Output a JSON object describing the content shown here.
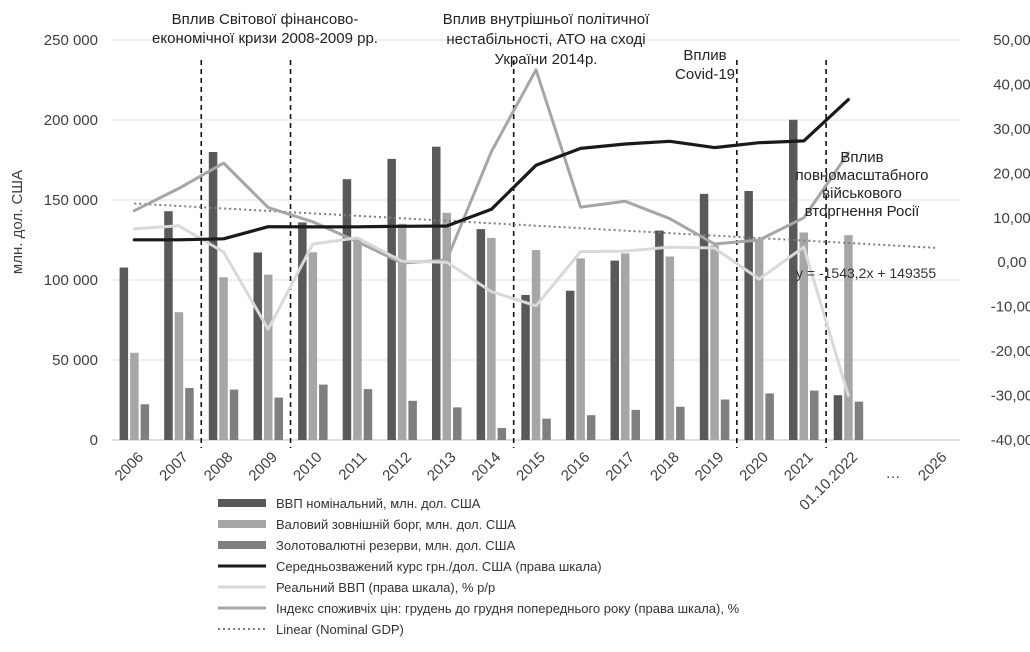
{
  "chart_data": {
    "type": "bar",
    "categories": [
      "2006",
      "2007",
      "2008",
      "2009",
      "2010",
      "2011",
      "2012",
      "2013",
      "2014",
      "2015",
      "2016",
      "2017",
      "2018",
      "2019",
      "2020",
      "2021",
      "01.10.2022",
      "…",
      "2026"
    ],
    "ylabel": "млн. дол. США",
    "ylim": [
      0,
      250000
    ],
    "y2lim": [
      -40,
      50
    ],
    "y_ticks": [
      "0",
      "50 000",
      "100 000",
      "150 000",
      "200 000",
      "250 000"
    ],
    "y2_ticks": [
      "-40,00",
      "-30,00",
      "-20,00",
      "-10,00",
      "0,00",
      "10,00",
      "20,00",
      "30,00",
      "40,00",
      "50,00"
    ],
    "series": [
      {
        "name": "ВВП номінальний, млн. дол. США",
        "type": "bar",
        "axis": "left",
        "color": "#595959",
        "values": [
          107800,
          143000,
          180000,
          117200,
          136000,
          163000,
          175700,
          183300,
          131800,
          90600,
          93300,
          112100,
          130900,
          153800,
          155600,
          200100,
          28000,
          null,
          null
        ]
      },
      {
        "name": "Валовий зовнішній борг, млн. дол. США",
        "type": "bar",
        "axis": "left",
        "color": "#a6a6a6",
        "values": [
          54500,
          79900,
          101700,
          103400,
          117300,
          126200,
          135100,
          142000,
          126300,
          118700,
          113500,
          116600,
          114700,
          121700,
          125700,
          129700,
          128000,
          null,
          null
        ]
      },
      {
        "name": "Золотовалютні резерви, млн. дол. США",
        "type": "bar",
        "axis": "left",
        "color": "#7f7f7f",
        "values": [
          22300,
          32500,
          31500,
          26500,
          34600,
          31800,
          24500,
          20400,
          7500,
          13300,
          15500,
          18800,
          20800,
          25300,
          29100,
          30900,
          24000,
          null,
          null
        ]
      },
      {
        "name": "Середньозважений курс грн./дол. США (права шкала)",
        "type": "line",
        "axis": "right",
        "color": "#1a1a1a",
        "values": [
          5.05,
          5.05,
          5.27,
          8.0,
          7.94,
          7.97,
          8.08,
          8.16,
          11.9,
          21.8,
          25.6,
          26.6,
          27.2,
          25.8,
          26.9,
          27.3,
          36.6,
          null,
          null
        ]
      },
      {
        "name": "Реальний ВВП (права шкала), % р/р",
        "type": "line",
        "axis": "right",
        "color": "#d9d9d9",
        "values": [
          7.5,
          8.2,
          2.3,
          -15.1,
          4.1,
          5.5,
          0.2,
          0.0,
          -6.6,
          -9.8,
          2.4,
          2.5,
          3.4,
          3.2,
          -3.8,
          3.4,
          -30.0,
          null,
          null
        ]
      },
      {
        "name": "Індекс споживчіх цін: грудень до грудня попереднього року (права шкала), %",
        "type": "line",
        "axis": "right",
        "color": "#a6a6a6",
        "values": [
          11.6,
          16.6,
          22.3,
          12.3,
          9.1,
          4.6,
          -0.2,
          0.5,
          24.9,
          43.3,
          12.4,
          13.7,
          9.8,
          4.1,
          5.0,
          10.0,
          24.6,
          null,
          null
        ]
      },
      {
        "name": "Linear (Nominal GDP)",
        "type": "trend",
        "axis": "left",
        "color": "#7f7f7f",
        "slope": -1543.2,
        "intercept": 149355
      }
    ],
    "annotations": [
      {
        "id": "crisis",
        "lines": [
          "Вплив Світової фінансово-",
          "економічної кризи 2008-2009 рр."
        ]
      },
      {
        "id": "ato",
        "lines": [
          "Вплив внутрішньої політичної",
          "нестабільності, АТО  на сході",
          "України 2014р."
        ]
      },
      {
        "id": "covid",
        "lines": [
          "Вплив",
          "Covid-19"
        ]
      },
      {
        "id": "invasion",
        "lines": [
          "Вплив",
          "повномасштабного",
          "військового",
          "вторгнення Росії"
        ]
      }
    ],
    "trend_equation": "y = -1543,2x  + 149355",
    "grid": true,
    "legend_position": "bottom"
  }
}
